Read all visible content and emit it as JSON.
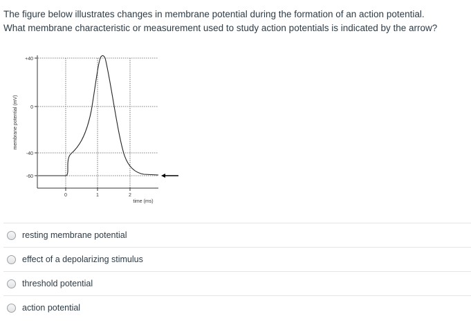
{
  "question": {
    "line1": "The figure below illustrates changes in membrane potential during the formation of an action potential.",
    "line2": "What membrane characteristic or measurement used to study action potentials is indicated by the arrow?"
  },
  "figure": {
    "ylabel": "membrane potential (mV)",
    "xlabel": "time (ms)",
    "y_ticks": [
      "+40",
      "0",
      "-40",
      "-60"
    ],
    "x_ticks": [
      "0",
      "1",
      "2"
    ]
  },
  "answers": [
    {
      "label": "resting membrane potential"
    },
    {
      "label": "effect of a depolarizing stimulus"
    },
    {
      "label": "threshold potential"
    },
    {
      "label": "action potential"
    }
  ]
}
